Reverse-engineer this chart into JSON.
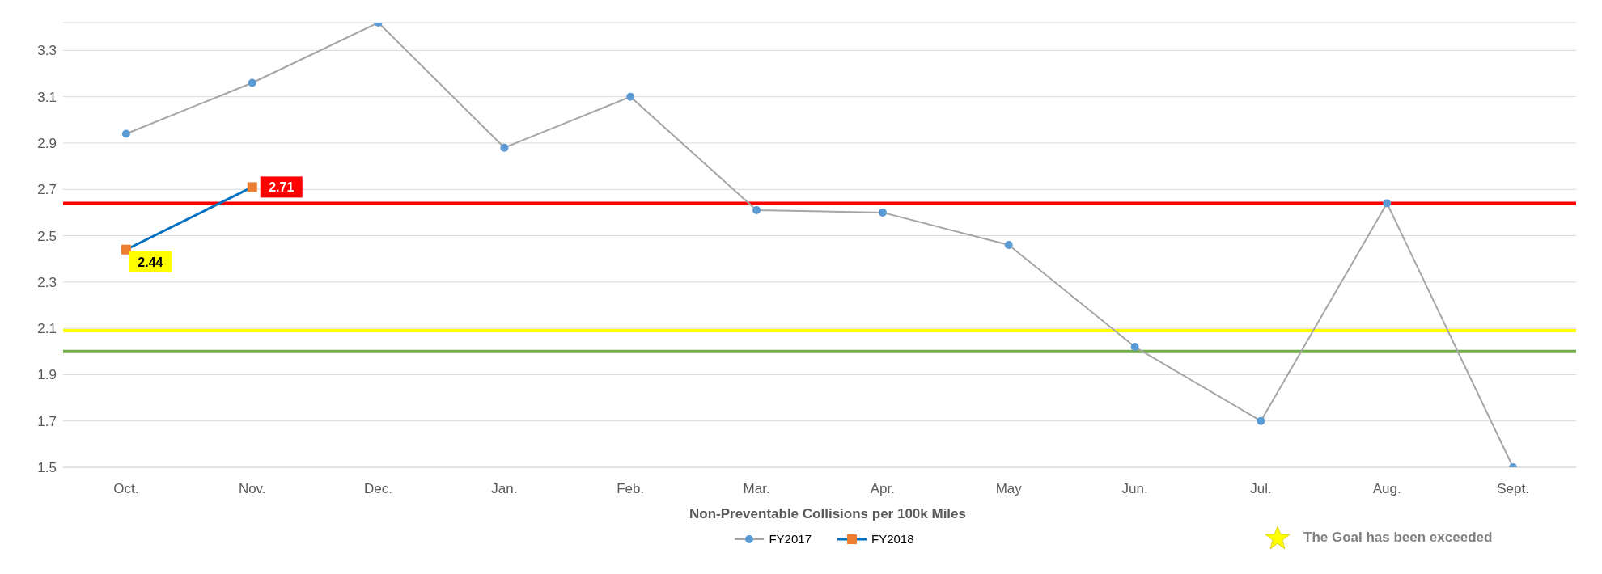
{
  "chart_data": {
    "type": "line",
    "xlabel": "Non-Preventable Collisions per 100k Miles",
    "categories": [
      "Oct.",
      "Nov.",
      "Dec.",
      "Jan.",
      "Feb.",
      "Mar.",
      "Apr.",
      "May",
      "Jun.",
      "Jul.",
      "Aug.",
      "Sept."
    ],
    "series": [
      {
        "name": "FY2017",
        "color": "#a5a5a5",
        "marker": "circle",
        "colors": [
          "#5b9bd5",
          "#5b9bd5",
          "#5b9bd5",
          "#5b9bd5",
          "#5b9bd5",
          "#5b9bd5",
          "#5b9bd5",
          "#5b9bd5",
          "#5b9bd5",
          "#5b9bd5",
          "#5b9bd5",
          "#5b9bd5"
        ],
        "values": [
          2.94,
          3.16,
          3.42,
          2.88,
          3.1,
          2.61,
          2.6,
          2.46,
          2.02,
          1.7,
          2.64,
          1.5
        ]
      },
      {
        "name": "FY2018",
        "color": "#0070c0",
        "marker": "square",
        "colors": [
          "#ed7d31",
          "#ed7d31",
          null,
          null,
          null,
          null,
          null,
          null,
          null,
          null,
          null,
          null
        ],
        "values": [
          2.44,
          2.71,
          null,
          null,
          null,
          null,
          null,
          null,
          null,
          null,
          null,
          null
        ],
        "value_labels": [
          "2.44",
          "2.71",
          null,
          null,
          null,
          null,
          null,
          null,
          null,
          null,
          null,
          null
        ]
      }
    ],
    "ylim": [
      1.5,
      3.42
    ],
    "yticks": [
      1.5,
      1.7,
      1.9,
      2.1,
      2.3,
      2.5,
      2.7,
      2.9,
      3.1,
      3.3
    ],
    "grid": "y",
    "ref_lines": [
      {
        "axis": "y",
        "value": 2.64,
        "color": "#ff0000"
      },
      {
        "axis": "y",
        "value": 2.09,
        "color": "#ffff00"
      },
      {
        "axis": "y",
        "value": 2.0,
        "color": "#70ad47"
      }
    ],
    "legend": "bottom",
    "annotations": [
      "The Goal has been exceeded"
    ]
  }
}
